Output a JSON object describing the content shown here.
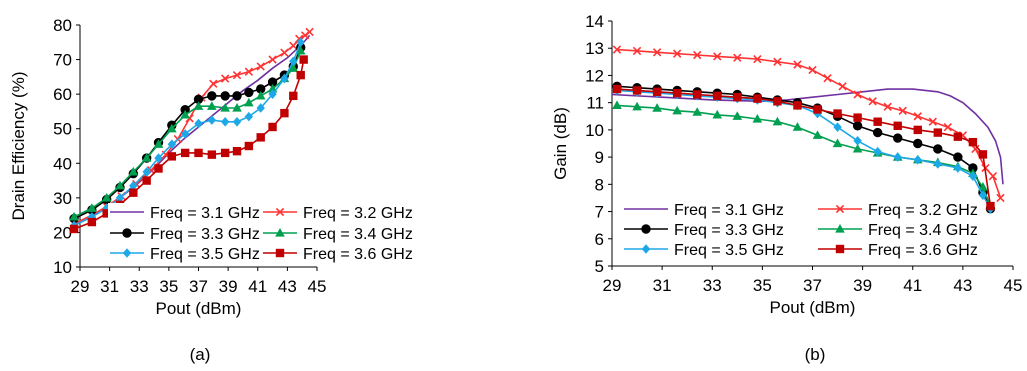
{
  "chart_data": [
    {
      "type": "line",
      "caption": "(a)",
      "xlabel": "Pout (dBm)",
      "ylabel": "Drain Efficiency (%)",
      "xlim": [
        29,
        45
      ],
      "ylim": [
        10,
        80
      ],
      "xticks": [
        29,
        31,
        33,
        35,
        37,
        39,
        41,
        43,
        45
      ],
      "yticks": [
        10,
        20,
        30,
        40,
        50,
        60,
        70,
        80
      ],
      "grid": false,
      "legend": "bottom-right",
      "series": [
        {
          "name": "Freq = 3.1 GHz",
          "color": "#7030A0",
          "marker": "none",
          "x": [
            28.6,
            30,
            31,
            32,
            33,
            34,
            35,
            36,
            37,
            38,
            39,
            40,
            41,
            42,
            43,
            43.5,
            44,
            44.5
          ],
          "y": [
            22,
            25,
            28,
            31,
            34.5,
            38.5,
            43,
            47,
            50.5,
            54,
            57.5,
            61,
            64,
            67.5,
            70.5,
            72.5,
            74.5,
            77
          ]
        },
        {
          "name": "Freq = 3.2 GHz",
          "color": "#FF3333",
          "marker": "x",
          "x": [
            28.6,
            29.8,
            30.8,
            31.8,
            32.8,
            33.8,
            34.8,
            35.6,
            36.4,
            37.2,
            38,
            38.8,
            39.6,
            40.4,
            41.2,
            42,
            42.8,
            43.4,
            43.8,
            44.2,
            44.5
          ],
          "y": [
            22.5,
            25,
            27.5,
            30.5,
            34,
            38,
            42.5,
            47,
            53,
            59,
            63,
            64.5,
            65.5,
            66.5,
            68,
            70,
            72,
            74,
            76,
            77,
            78
          ]
        },
        {
          "name": "Freq = 3.3 GHz",
          "color": "#000000",
          "marker": "circle",
          "x": [
            28.6,
            29.8,
            30.8,
            31.7,
            32.6,
            33.5,
            34.3,
            35.2,
            36.1,
            37,
            37.9,
            38.8,
            39.6,
            40.4,
            41.2,
            42,
            42.8,
            43.4,
            43.9
          ],
          "y": [
            24,
            26.5,
            29.5,
            33,
            37,
            41.5,
            46,
            51,
            55.5,
            58.5,
            59.5,
            59.5,
            59.5,
            60.5,
            61.5,
            63.5,
            65.5,
            68,
            73.5
          ]
        },
        {
          "name": "Freq = 3.4 GHz",
          "color": "#00A050",
          "marker": "triangle",
          "x": [
            28.6,
            29.8,
            30.8,
            31.7,
            32.6,
            33.5,
            34.3,
            35.2,
            36.1,
            37,
            37.9,
            38.8,
            39.6,
            40.4,
            41.2,
            42,
            42.8,
            43.4,
            43.9
          ],
          "y": [
            24.5,
            27,
            30,
            33.5,
            37.5,
            41.5,
            45.5,
            50,
            54,
            56.5,
            56.5,
            56,
            56,
            57.5,
            59.5,
            61.5,
            64.5,
            67.5,
            72.5
          ]
        },
        {
          "name": "Freq = 3.5 GHz",
          "color": "#1FA8E8",
          "marker": "diamond",
          "x": [
            28.6,
            29.8,
            30.8,
            31.7,
            32.6,
            33.5,
            34.3,
            35.2,
            36.1,
            37,
            37.9,
            38.8,
            39.6,
            40.4,
            41.2,
            42,
            42.8,
            43.4,
            43.9
          ],
          "y": [
            22,
            24.5,
            27,
            30,
            33.5,
            37.5,
            41.5,
            45.5,
            48.5,
            51.5,
            52.5,
            52,
            52,
            53.5,
            56,
            60,
            64.5,
            69.5,
            75
          ]
        },
        {
          "name": "Freq = 3.6 GHz",
          "color": "#C00000",
          "marker": "square",
          "x": [
            28.6,
            29.8,
            30.8,
            31.7,
            32.6,
            33.5,
            34.3,
            35.2,
            36.1,
            37,
            37.9,
            38.8,
            39.6,
            40.4,
            41.2,
            42,
            42.8,
            43.4,
            43.9,
            44.1
          ],
          "y": [
            21,
            23,
            25.5,
            28,
            31.5,
            35,
            38.5,
            42,
            43,
            43,
            42.5,
            43,
            43.5,
            45,
            47.5,
            50.5,
            54.5,
            59.5,
            65.5,
            70
          ]
        }
      ]
    },
    {
      "type": "line",
      "caption": "(b)",
      "xlabel": "Pout (dBm)",
      "ylabel": "Gain (dB)",
      "xlim": [
        29,
        45
      ],
      "ylim": [
        5,
        14
      ],
      "xticks": [
        29,
        31,
        33,
        35,
        37,
        39,
        41,
        43,
        45
      ],
      "yticks": [
        5,
        6,
        7,
        8,
        9,
        10,
        11,
        12,
        13,
        14
      ],
      "grid": false,
      "legend": "bottom",
      "series": [
        {
          "name": "Freq = 3.1 GHz",
          "color": "#7030A0",
          "marker": "none",
          "x": [
            29,
            31,
            33,
            35,
            36,
            37,
            38,
            39,
            40,
            41,
            42,
            42.5,
            43,
            43.5,
            44,
            44.3,
            44.5,
            44.6
          ],
          "y": [
            11.3,
            11.2,
            11.1,
            11.05,
            11.1,
            11.2,
            11.3,
            11.4,
            11.5,
            11.5,
            11.4,
            11.25,
            11,
            10.6,
            10.1,
            9.6,
            9,
            8
          ]
        },
        {
          "name": "Freq = 3.2 GHz",
          "color": "#FF3333",
          "marker": "x",
          "x": [
            29.2,
            30,
            30.8,
            31.6,
            32.4,
            33.2,
            34,
            34.8,
            35.6,
            36.4,
            37,
            37.6,
            38.2,
            38.8,
            39.4,
            40,
            40.6,
            41.2,
            41.8,
            42.4,
            43,
            43.5,
            43.9,
            44.2,
            44.5
          ],
          "y": [
            12.95,
            12.9,
            12.85,
            12.8,
            12.75,
            12.7,
            12.65,
            12.6,
            12.5,
            12.4,
            12.2,
            11.9,
            11.6,
            11.3,
            11.05,
            10.85,
            10.7,
            10.5,
            10.3,
            10.1,
            9.8,
            9.3,
            8.6,
            8.3,
            7.5
          ]
        },
        {
          "name": "Freq = 3.3 GHz",
          "color": "#000000",
          "marker": "circle",
          "x": [
            29.2,
            30,
            30.8,
            31.6,
            32.4,
            33.2,
            34,
            34.8,
            35.6,
            36.4,
            37.2,
            38,
            38.8,
            39.6,
            40.4,
            41.2,
            42,
            42.8,
            43.4,
            43.8,
            44.1
          ],
          "y": [
            11.6,
            11.55,
            11.5,
            11.45,
            11.4,
            11.35,
            11.3,
            11.2,
            11.1,
            11,
            10.8,
            10.5,
            10.15,
            9.9,
            9.7,
            9.5,
            9.3,
            9,
            8.6,
            7.7,
            7.1
          ]
        },
        {
          "name": "Freq = 3.4 GHz",
          "color": "#00A050",
          "marker": "triangle",
          "x": [
            29.2,
            30,
            30.8,
            31.6,
            32.4,
            33.2,
            34,
            34.8,
            35.6,
            36.4,
            37.2,
            38,
            38.8,
            39.6,
            40.4,
            41.2,
            42,
            42.8,
            43.4,
            43.8,
            44.1
          ],
          "y": [
            10.9,
            10.85,
            10.8,
            10.7,
            10.65,
            10.55,
            10.5,
            10.4,
            10.3,
            10.1,
            9.8,
            9.5,
            9.3,
            9.15,
            9,
            8.9,
            8.8,
            8.65,
            8.4,
            7.9,
            7.2
          ]
        },
        {
          "name": "Freq = 3.5 GHz",
          "color": "#1FA8E8",
          "marker": "diamond",
          "x": [
            29.2,
            30,
            30.8,
            31.6,
            32.4,
            33.2,
            34,
            34.8,
            35.6,
            36.4,
            37.2,
            38,
            38.8,
            39.6,
            40.4,
            41.2,
            42,
            42.8,
            43.4,
            43.8,
            44.1
          ],
          "y": [
            11.45,
            11.4,
            11.35,
            11.3,
            11.25,
            11.2,
            11.15,
            11.1,
            11,
            10.9,
            10.6,
            10.1,
            9.6,
            9.2,
            9,
            8.9,
            8.75,
            8.6,
            8.3,
            7.6,
            7.1
          ]
        },
        {
          "name": "Freq = 3.6 GHz",
          "color": "#C00000",
          "marker": "square",
          "x": [
            29.2,
            30,
            30.8,
            31.6,
            32.4,
            33.2,
            34,
            34.8,
            35.6,
            36.4,
            37.2,
            38,
            38.8,
            39.6,
            40.4,
            41.2,
            42,
            42.8,
            43.4,
            43.8,
            44.1
          ],
          "y": [
            11.5,
            11.45,
            11.4,
            11.35,
            11.3,
            11.25,
            11.2,
            11.15,
            11.05,
            10.9,
            10.75,
            10.6,
            10.45,
            10.3,
            10.15,
            10,
            9.9,
            9.75,
            9.55,
            9.1,
            7.2
          ]
        }
      ]
    }
  ]
}
